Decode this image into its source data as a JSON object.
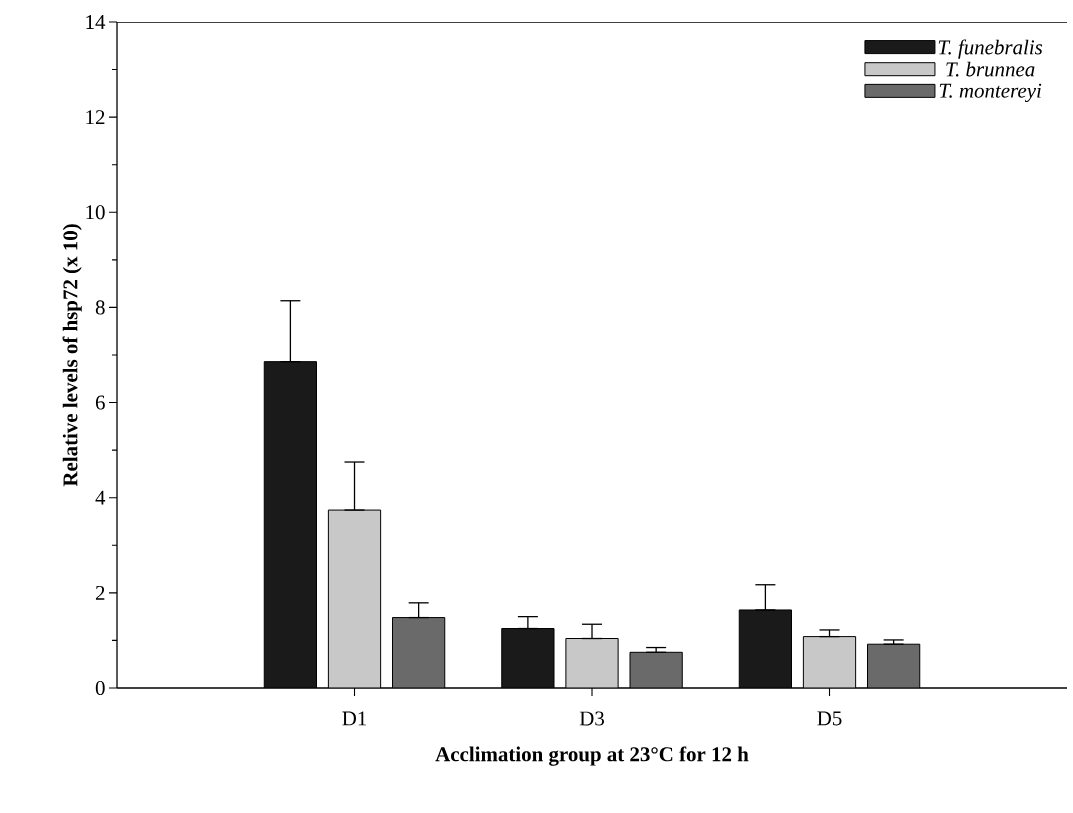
{
  "chart_data": {
    "type": "bar",
    "xlabel": "Acclimation group at 23°C for 12 h",
    "ylabel": "Relative levels of hsp72 (x 10)",
    "categories": [
      "D1",
      "D3",
      "D5"
    ],
    "series": [
      {
        "name": "T. funebralis",
        "color": "#1a1a1a",
        "values": [
          6.86,
          1.25,
          1.64
        ],
        "errors": [
          [
            6.86,
            8.14
          ],
          [
            1.25,
            1.5
          ],
          [
            1.64,
            2.17
          ]
        ]
      },
      {
        "name": "T. brunnea",
        "color": "#c8c8c8",
        "values": [
          3.74,
          1.04,
          1.08
        ],
        "errors": [
          [
            3.74,
            4.75
          ],
          [
            1.04,
            1.34
          ],
          [
            1.08,
            1.22
          ]
        ]
      },
      {
        "name": "T. montereyi",
        "color": "#6a6a6a",
        "values": [
          1.48,
          0.75,
          0.92
        ],
        "errors": [
          [
            1.48,
            1.79
          ],
          [
            0.75,
            0.85
          ],
          [
            0.92,
            1.01
          ]
        ]
      }
    ],
    "ylim": [
      0,
      14
    ],
    "yticks": [
      0,
      2,
      4,
      6,
      8,
      10,
      12,
      14
    ],
    "legend": "top right"
  }
}
